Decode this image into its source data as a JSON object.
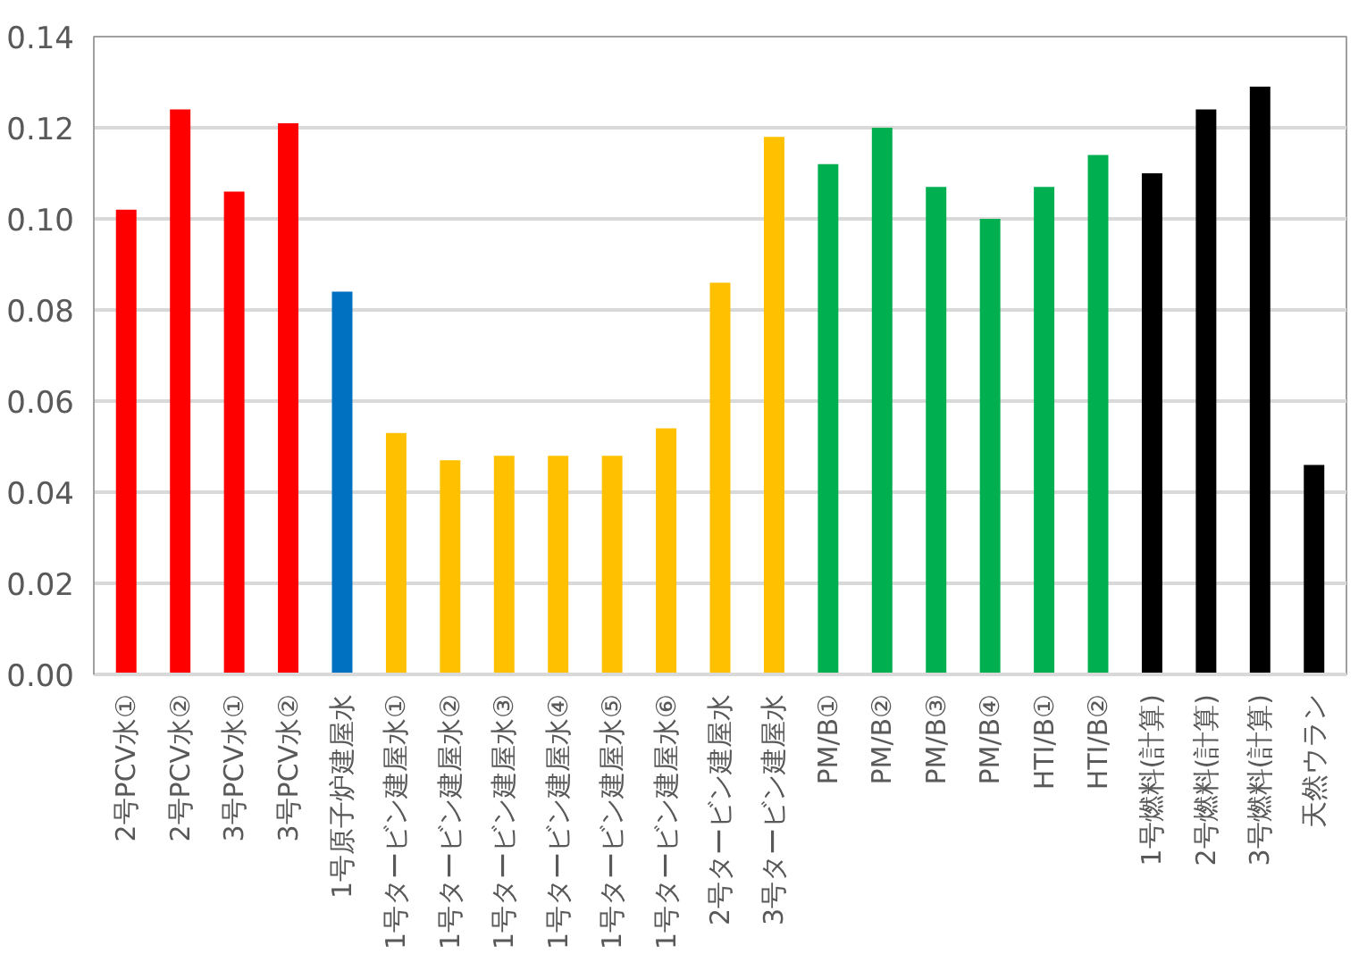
{
  "chart_data": {
    "type": "bar",
    "categories": [
      "2号PCV水①",
      "2号PCV水②",
      "3号PCV水①",
      "3号PCV水②",
      "1号原子炉建屋水",
      "1号タービン建屋水①",
      "1号タービン建屋水②",
      "1号タービン建屋水③",
      "1号タービン建屋水④",
      "1号タービン建屋水⑤",
      "1号タービン建屋水⑥",
      "2号タービン建屋水",
      "3号タービン建屋水",
      "PM/B①",
      "PM/B②",
      "PM/B③",
      "PM/B④",
      "HTI/B①",
      "HTI/B②",
      "1号燃料(計算)",
      "2号燃料(計算)",
      "3号燃料(計算)",
      "天然ウラン"
    ],
    "values": [
      0.102,
      0.124,
      0.106,
      0.121,
      0.084,
      0.053,
      0.047,
      0.048,
      0.048,
      0.048,
      0.054,
      0.086,
      0.118,
      0.112,
      0.12,
      0.107,
      0.1,
      0.107,
      0.114,
      0.11,
      0.124,
      0.129,
      0.046
    ],
    "colors": [
      "#ff0000",
      "#ff0000",
      "#ff0000",
      "#ff0000",
      "#0070c0",
      "#ffc000",
      "#ffc000",
      "#ffc000",
      "#ffc000",
      "#ffc000",
      "#ffc000",
      "#ffc000",
      "#ffc000",
      "#00b050",
      "#00b050",
      "#00b050",
      "#00b050",
      "#00b050",
      "#00b050",
      "#000000",
      "#000000",
      "#000000",
      "#000000"
    ],
    "ylim": [
      0,
      0.14
    ],
    "yticks": [
      {
        "value": 0,
        "label": "0.00"
      },
      {
        "value": 0.02,
        "label": "0.02"
      },
      {
        "value": 0.04,
        "label": "0.04"
      },
      {
        "value": 0.06,
        "label": "0.06"
      },
      {
        "value": 0.08,
        "label": "0.08"
      },
      {
        "value": 0.1,
        "label": "0.10"
      },
      {
        "value": 0.12,
        "label": "0.12"
      },
      {
        "value": 0.14,
        "label": "0.14"
      }
    ],
    "grid": "y"
  }
}
